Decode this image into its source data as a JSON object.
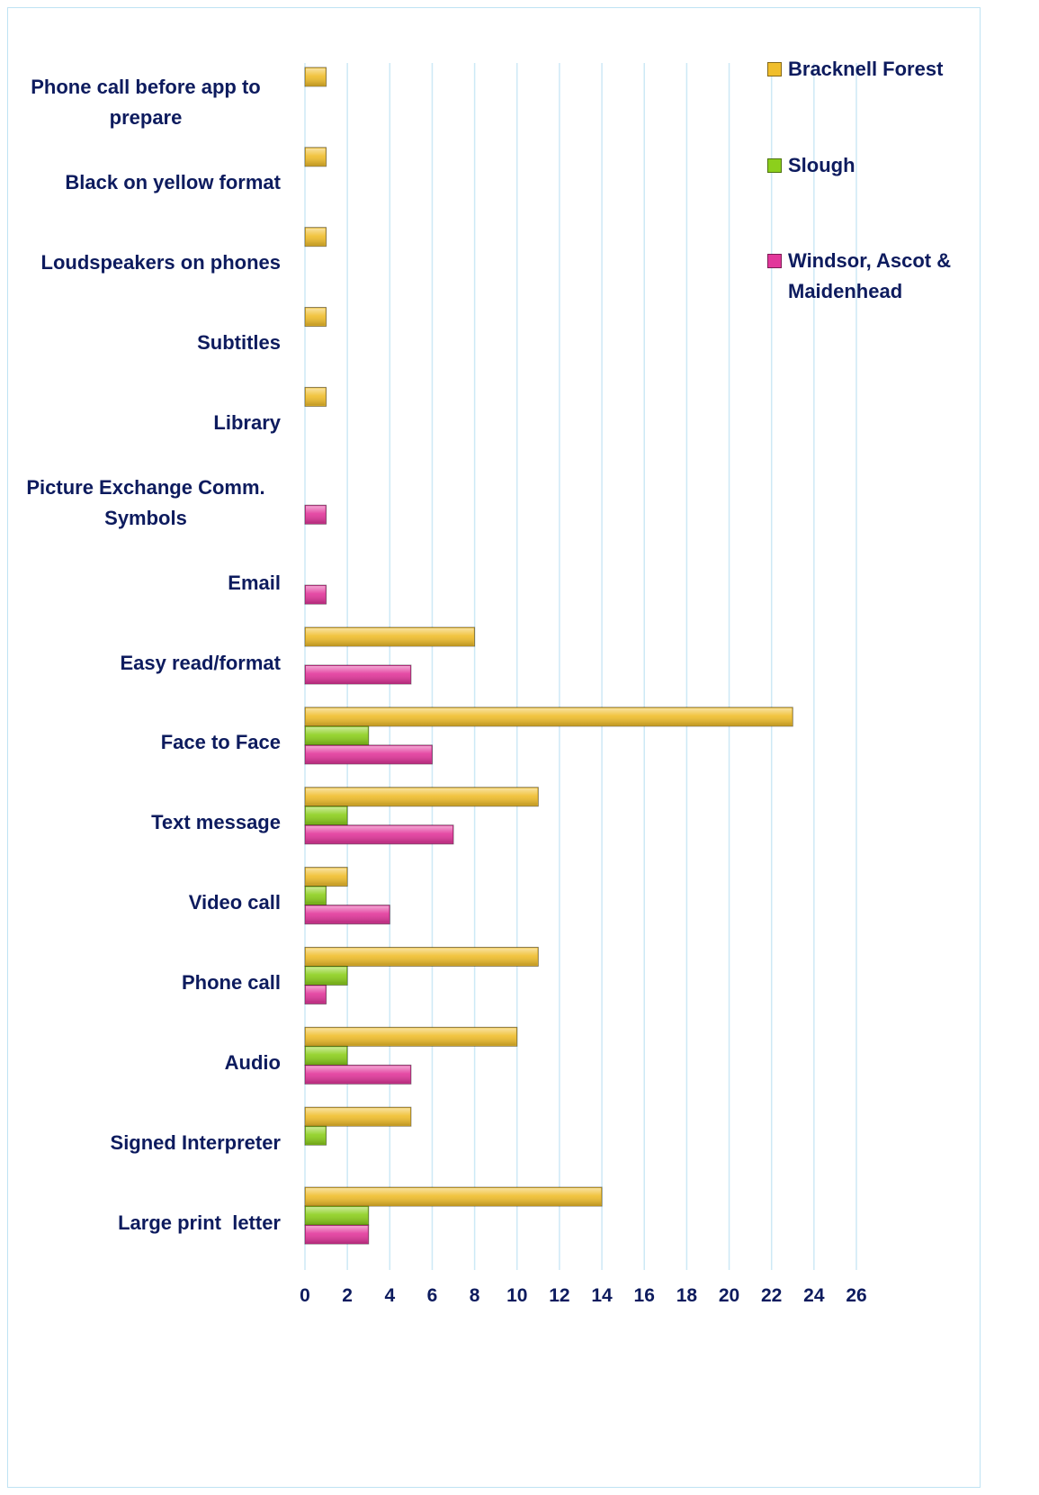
{
  "chart_data": {
    "type": "bar",
    "orientation": "horizontal",
    "categories": [
      "Phone call before app to prepare",
      "Black on yellow format",
      "Loudspeakers on phones",
      "Subtitles",
      "Library",
      "Picture Exchange Comm. Symbols",
      "Email",
      "Easy read/format",
      "Face to Face",
      "Text message",
      "Video call",
      "Phone call",
      "Audio",
      "Signed Interpreter",
      "Large print  letter"
    ],
    "series": [
      {
        "name": "Bracknell Forest",
        "color": "#f0be2c",
        "values": [
          1,
          1,
          1,
          1,
          1,
          null,
          null,
          8,
          23,
          11,
          2,
          11,
          10,
          5,
          14
        ]
      },
      {
        "name": "Slough",
        "color": "#8ccf1c",
        "values": [
          null,
          null,
          null,
          null,
          null,
          null,
          null,
          null,
          3,
          2,
          1,
          2,
          2,
          1,
          3
        ]
      },
      {
        "name": "Windsor, Ascot & Maidenhead",
        "color": "#e2379b",
        "values": [
          null,
          null,
          null,
          null,
          null,
          1,
          1,
          5,
          6,
          7,
          4,
          1,
          5,
          null,
          3
        ]
      }
    ],
    "xlim": [
      0,
      26
    ],
    "xticks": [
      0,
      2,
      4,
      6,
      8,
      10,
      12,
      14,
      16,
      18,
      20,
      22,
      24,
      26
    ],
    "grid": true,
    "legend": "top-right"
  }
}
